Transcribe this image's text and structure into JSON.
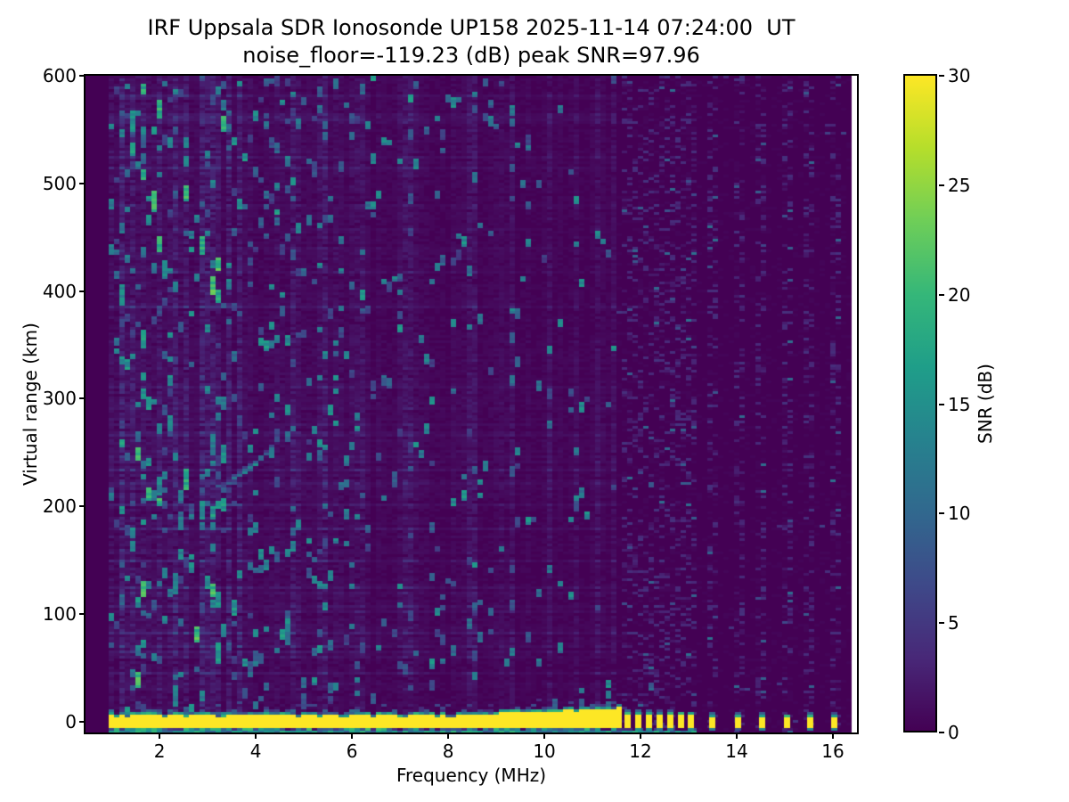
{
  "figure": {
    "title": "IRF Uppsala SDR Ionosonde UP158 2025-11-14 07:24:00  UT",
    "subtitle": "noise_floor=-119.23 (dB) peak SNR=97.96"
  },
  "chart_data": {
    "type": "heatmap",
    "title": "IRF Uppsala SDR Ionosonde UP158 2025-11-14 07:24:00  UT",
    "subtitle": "noise_floor=-119.23 (dB) peak SNR=97.96",
    "station": "UP158",
    "timestamp_ut": "2025-11-14 07:24:00",
    "noise_floor_db": -119.23,
    "peak_snr_db": 97.96,
    "xlabel": "Frequency (MHz)",
    "ylabel": "Virtual range (km)",
    "xlim": [
      0.46,
      16.5
    ],
    "ylim": [
      -10,
      600
    ],
    "xticks": [
      2,
      4,
      6,
      8,
      10,
      12,
      14,
      16
    ],
    "yticks": [
      0,
      100,
      200,
      300,
      400,
      500,
      600
    ],
    "grid": false,
    "colorbar": {
      "label": "SNR (dB)",
      "ticks": [
        0,
        5,
        10,
        15,
        20,
        25,
        30
      ],
      "clim": [
        0,
        30
      ],
      "colormap": "viridis",
      "position": "right"
    },
    "colormap_stops": [
      "#440154",
      "#482878",
      "#3e4989",
      "#31688e",
      "#26828e",
      "#1f9e89",
      "#35b779",
      "#6ece58",
      "#b5de2b",
      "#fde725"
    ],
    "features": {
      "sweep_start_mhz": 0.95,
      "sweep_end_mhz": 16.35,
      "ground_return_band": {
        "f_start_mhz": 0.95,
        "f_end_mhz": 11.5,
        "center_range_km": 0,
        "half_width_km": 6,
        "snr_db": 30,
        "note": "saturated yellow direct-pulse band at zero virtual range, green fringes above and below, top edge rises slightly above 9 MHz"
      },
      "band_gap_mhz": [
        11.5,
        11.72
      ],
      "pulse_frequencies_mhz": [
        11.72,
        11.95,
        12.17,
        12.39,
        12.61,
        12.83,
        13.03,
        13.48,
        14.01,
        14.51,
        15.03,
        15.51,
        16.01
      ],
      "pulse_return": {
        "center_range_km": 0,
        "half_width_km": 5.5,
        "snr_db": 30
      },
      "bottom_scatter_row": {
        "f_start_mhz": 0.95,
        "f_end_mhz": 13.1,
        "range_km": -7.5,
        "snr_db_range": [
          8,
          20
        ]
      },
      "echo_trace": {
        "f_start_mhz": 3.2,
        "f_end_mhz": 4.35,
        "range_start_km": 219,
        "range_end_km": 250,
        "snr_db_range": [
          7,
          16
        ]
      },
      "noise": "sparse teal vertical speckle over dark purple background, densest below 4 MHz with tall bright streaks near 1.5-3.5 MHz, sparse above 9 MHz; above 11.7 MHz faint bluish dashed columns only at pulse frequencies",
      "noise_seed": 1337
    }
  }
}
